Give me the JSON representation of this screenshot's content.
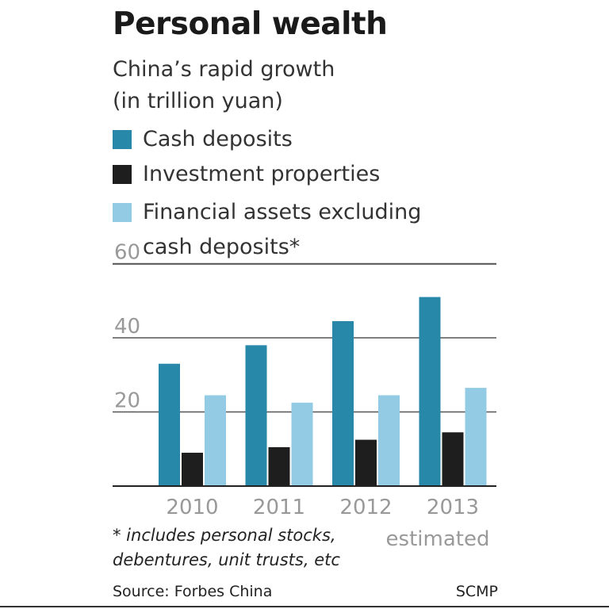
{
  "title": "Personal wealth",
  "subtitle_lines": [
    "China’s rapid growth",
    "(in trillion yuan)"
  ],
  "legend": [
    {
      "label_lines": [
        "Cash deposits"
      ],
      "color": "#2788a9"
    },
    {
      "label_lines": [
        "Investment properties"
      ],
      "color": "#1e1e1e"
    },
    {
      "label_lines": [
        "Financial assets excluding",
        "cash deposits*"
      ],
      "color": "#92cbe3"
    }
  ],
  "chart_data": {
    "type": "bar",
    "title": "Personal wealth",
    "subtitle": "China’s rapid growth (in trillion yuan)",
    "categories": [
      "2010",
      "2011",
      "2012",
      "2013"
    ],
    "category_note": {
      "2013": "estimated"
    },
    "series": [
      {
        "name": "Cash deposits",
        "color": "#2788a9",
        "values": [
          33,
          38,
          44.5,
          51
        ]
      },
      {
        "name": "Investment properties",
        "color": "#1e1e1e",
        "values": [
          9,
          10.5,
          12.5,
          14.5
        ]
      },
      {
        "name": "Financial assets excluding cash deposits*",
        "color": "#92cbe3",
        "values": [
          24.5,
          22.5,
          24.5,
          26.5
        ]
      }
    ],
    "ylim": [
      0,
      60
    ],
    "yticks": [
      20,
      40,
      60
    ],
    "gridlines": true,
    "legend_position": "top-left"
  },
  "footnote_lines": [
    "* includes personal stocks,",
    "debentures, unit trusts, etc"
  ],
  "source": "Source: Forbes China",
  "credit": "SCMP"
}
